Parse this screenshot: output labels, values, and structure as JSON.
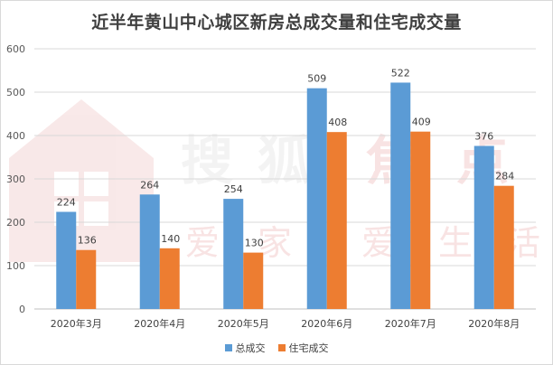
{
  "chart_data": {
    "type": "bar",
    "title": "近半年黄山中心城区新房总成交量和住宅成交量",
    "categories": [
      "2020年3月",
      "2020年4月",
      "2020年5月",
      "2020年6月",
      "2020年7月",
      "2020年8月"
    ],
    "series": [
      {
        "name": "总成交",
        "values": [
          224,
          264,
          254,
          509,
          522,
          376
        ],
        "color": "#5b9bd5"
      },
      {
        "name": "住宅成交",
        "values": [
          136,
          140,
          130,
          408,
          409,
          284
        ],
        "color": "#ed7d31"
      }
    ],
    "ylim": [
      0,
      600
    ],
    "yticks": [
      "0",
      "100",
      "200",
      "300",
      "400",
      "500",
      "600"
    ],
    "grid": true,
    "legend_position": "bottom",
    "watermark": {
      "text_main": "搜狐焦点",
      "text_sub": "爱家 爱生活",
      "color": "#f3dede"
    }
  }
}
